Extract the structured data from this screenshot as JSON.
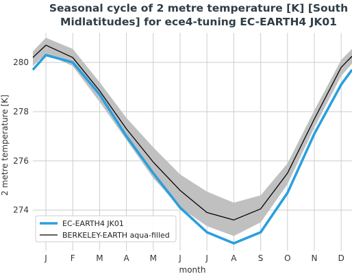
{
  "chart_data": {
    "type": "line",
    "title_lines": [
      "Seasonal cycle of 2 metre temperature [K] [South",
      "Midlatitudes] for ece4-tuning EC-EARTH4 JK01"
    ],
    "xlabel": "month",
    "ylabel": "2 metre temperature [K]",
    "categories": [
      "J",
      "F",
      "M",
      "A",
      "M",
      "J",
      "J",
      "A",
      "S",
      "O",
      "N",
      "D"
    ],
    "yticks": [
      274,
      276,
      278,
      280
    ],
    "ylim": [
      272.35,
      281.2
    ],
    "grid": true,
    "legend_position": "lower-left",
    "series": [
      {
        "name": "EC-EARTH4 JK01",
        "color": "#2a9fe0",
        "values": [
          280.3,
          280.0,
          278.7,
          277.0,
          275.5,
          274.1,
          273.1,
          272.65,
          273.1,
          274.7,
          277.1,
          279.1
        ],
        "wrap_start": 279.7,
        "wrap_end": 279.7
      },
      {
        "name": "BERKELEY-EARTH aqua-filled",
        "color": "#000000",
        "values": [
          280.7,
          280.2,
          278.85,
          277.3,
          275.95,
          274.8,
          273.9,
          273.6,
          274.05,
          275.5,
          277.7,
          279.8
        ],
        "wrap_start": 280.2,
        "wrap_end": 280.25,
        "band_upper": [
          281.0,
          280.55,
          279.2,
          277.75,
          276.55,
          275.45,
          274.75,
          274.3,
          274.6,
          275.9,
          278.05,
          280.1
        ],
        "band_lower": [
          280.35,
          279.85,
          278.4,
          276.85,
          275.3,
          274.1,
          273.35,
          272.95,
          273.5,
          275.05,
          277.35,
          279.45
        ],
        "wrap_band_start": [
          280.45,
          279.85
        ],
        "wrap_band_end": [
          280.55,
          279.95
        ]
      }
    ],
    "band_color": "#c0c0c0",
    "grid_color": "#cccccc"
  }
}
